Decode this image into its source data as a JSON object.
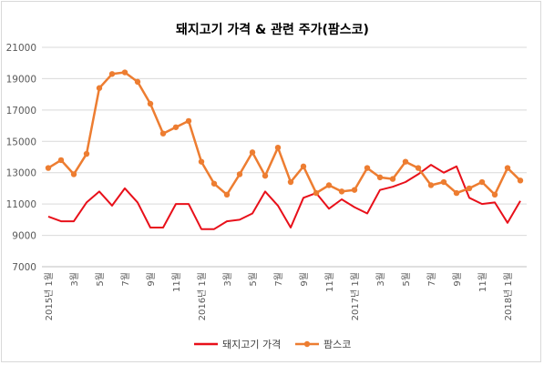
{
  "chart_data": {
    "type": "line",
    "title": "돼지고기 가격 & 관련 주가(팜스코)",
    "xlabel": "",
    "ylabel": "",
    "ylim": [
      7000,
      21000
    ],
    "yticks": [
      7000,
      9000,
      11000,
      13000,
      15000,
      17000,
      19000,
      21000
    ],
    "grid": true,
    "legend": "bottom",
    "categories": [
      "2015년 1월",
      "2",
      "3월",
      "4",
      "5월",
      "6",
      "7월",
      "8",
      "9월",
      "10",
      "11월",
      "12",
      "2016년 1월",
      "2",
      "3월",
      "4",
      "5월",
      "6",
      "7월",
      "8",
      "9월",
      "10",
      "11월",
      "12",
      "2017년 1월",
      "2",
      "3월",
      "4",
      "5월",
      "6",
      "7월",
      "8",
      "9월",
      "10",
      "11월",
      "12",
      "2018년 1월",
      "2"
    ],
    "tick_labels": [
      {
        "index": 0,
        "text": "2015년 1월"
      },
      {
        "index": 2,
        "text": "3월"
      },
      {
        "index": 4,
        "text": "5월"
      },
      {
        "index": 6,
        "text": "7월"
      },
      {
        "index": 8,
        "text": "9월"
      },
      {
        "index": 10,
        "text": "11월"
      },
      {
        "index": 12,
        "text": "2016년 1월"
      },
      {
        "index": 14,
        "text": "3월"
      },
      {
        "index": 16,
        "text": "5월"
      },
      {
        "index": 18,
        "text": "7월"
      },
      {
        "index": 20,
        "text": "9월"
      },
      {
        "index": 22,
        "text": "11월"
      },
      {
        "index": 24,
        "text": "2017년 1월"
      },
      {
        "index": 26,
        "text": "3월"
      },
      {
        "index": 28,
        "text": "5월"
      },
      {
        "index": 30,
        "text": "7월"
      },
      {
        "index": 32,
        "text": "9월"
      },
      {
        "index": 34,
        "text": "11월"
      },
      {
        "index": 36,
        "text": "2018년 1월"
      }
    ],
    "series": [
      {
        "name": "돼지고기 가격",
        "color": "#e8101a",
        "marker": "none",
        "values": [
          10200,
          9900,
          9900,
          11100,
          11800,
          10900,
          12000,
          11100,
          9500,
          9500,
          11000,
          11000,
          9400,
          9400,
          9900,
          10000,
          10400,
          11800,
          10900,
          9500,
          11400,
          11700,
          10700,
          11300,
          10800,
          10400,
          11900,
          12100,
          12400,
          12900,
          13500,
          13000,
          13400,
          11400,
          11000,
          11100,
          9800,
          11200
        ]
      },
      {
        "name": "팜스코",
        "color": "#ed7d31",
        "marker": "circle",
        "values": [
          13300,
          13800,
          12900,
          14200,
          18400,
          19300,
          19400,
          18800,
          17400,
          15500,
          15900,
          16300,
          13700,
          12300,
          11600,
          12900,
          14300,
          12800,
          14600,
          12400,
          13400,
          11700,
          12200,
          11800,
          11900,
          13300,
          12700,
          12600,
          13700,
          13300,
          12200,
          12400,
          11700,
          12000,
          12400,
          11600,
          13300,
          12500
        ]
      }
    ]
  }
}
